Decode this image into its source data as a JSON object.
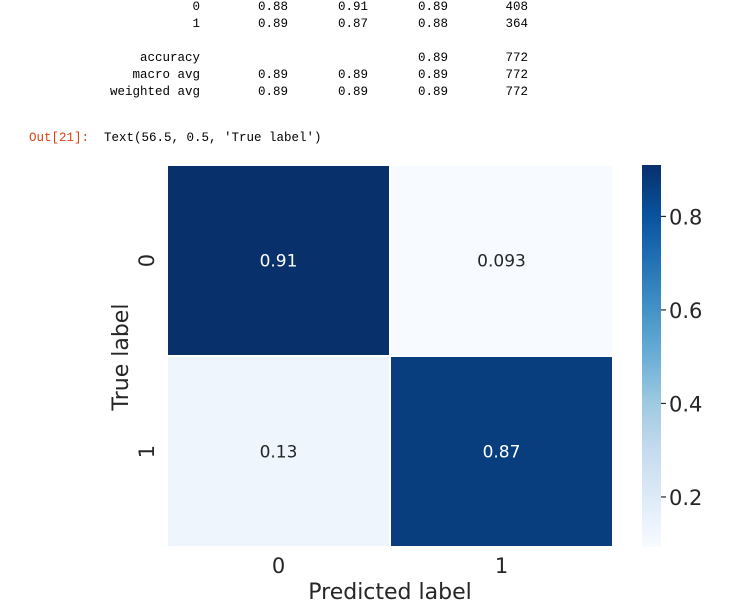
{
  "report": {
    "rows": [
      {
        "label": "0",
        "precision": "0.88",
        "recall": "0.91",
        "f1": "0.89",
        "support": "408"
      },
      {
        "label": "1",
        "precision": "0.89",
        "recall": "0.87",
        "f1": "0.88",
        "support": "364"
      },
      {
        "label": "accuracy",
        "precision": "",
        "recall": "",
        "f1": "0.89",
        "support": "772"
      },
      {
        "label": "macro avg",
        "precision": "0.89",
        "recall": "0.89",
        "f1": "0.89",
        "support": "772"
      },
      {
        "label": "weighted avg",
        "precision": "0.89",
        "recall": "0.89",
        "f1": "0.89",
        "support": "772"
      }
    ]
  },
  "output": {
    "prompt": "Out[21]:",
    "text": "Text(56.5, 0.5, 'True label')"
  },
  "chart_data": {
    "type": "heatmap",
    "xlabel": "Predicted label",
    "ylabel": "True label",
    "x_categories": [
      "0",
      "1"
    ],
    "y_categories": [
      "0",
      "1"
    ],
    "values": [
      [
        0.91,
        0.093
      ],
      [
        0.13,
        0.87
      ]
    ],
    "value_labels": [
      [
        "0.91",
        "0.093"
      ],
      [
        "0.13",
        "0.87"
      ]
    ],
    "colormap": "Blues",
    "colorbar": {
      "range": [
        0.093,
        0.91
      ],
      "ticks": [
        0.2,
        0.4,
        0.6,
        0.8
      ],
      "tick_labels": [
        "0.2",
        "0.4",
        "0.6",
        "0.8"
      ]
    }
  }
}
